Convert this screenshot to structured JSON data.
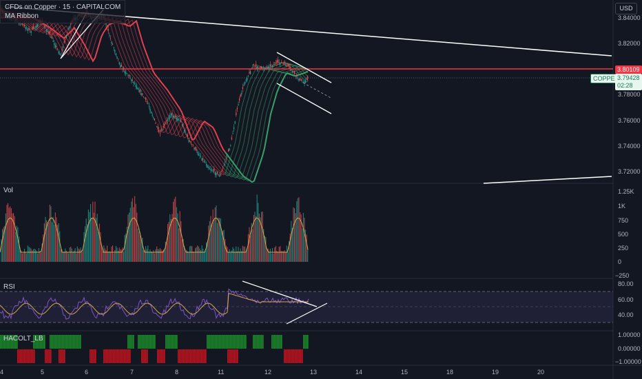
{
  "header": {
    "symbol": "CFDs on Copper · 15 · CAPITALCOM",
    "indicator": "MA Ribbon"
  },
  "currency_button": "USD",
  "price_axis": {
    "ticks": [
      "3.84000",
      "3.82000",
      "3.80000",
      "3.78000",
      "3.76000",
      "3.74000",
      "3.72000"
    ],
    "red_line_label": "3.80109",
    "symbol_label": "COPPER",
    "last_price": "3.79428",
    "countdown": "02:28"
  },
  "volume_pane": {
    "label": "Vol",
    "ticks": [
      "1.25K",
      "1K",
      "750",
      "500",
      "250",
      "0",
      "−250"
    ]
  },
  "rsi_pane": {
    "label": "RSI",
    "ticks": [
      "80.00",
      "60.00",
      "40.00"
    ]
  },
  "hacolt_pane": {
    "label": "HACOLT_LB",
    "ticks": [
      "1.00000",
      "0.00000",
      "−1.00000"
    ]
  },
  "time_axis": [
    "4",
    "5",
    "6",
    "7",
    "8",
    "11",
    "12",
    "13",
    "14",
    "15",
    "18",
    "19",
    "20"
  ],
  "colors": {
    "background": "#131722",
    "up": "#26a69a",
    "down": "#ef5350",
    "price_line": "#f23645",
    "ribbon_green": "#3aa06a",
    "ribbon_red": "#e0424f",
    "rsi_line": "#7e57c2",
    "rsi_ma": "#d6a84a",
    "volume_ma": "#d6a84a",
    "hacolt_up": "#1b8a2a",
    "hacolt_down": "#c2131f",
    "drawings": "#ffffff"
  }
}
